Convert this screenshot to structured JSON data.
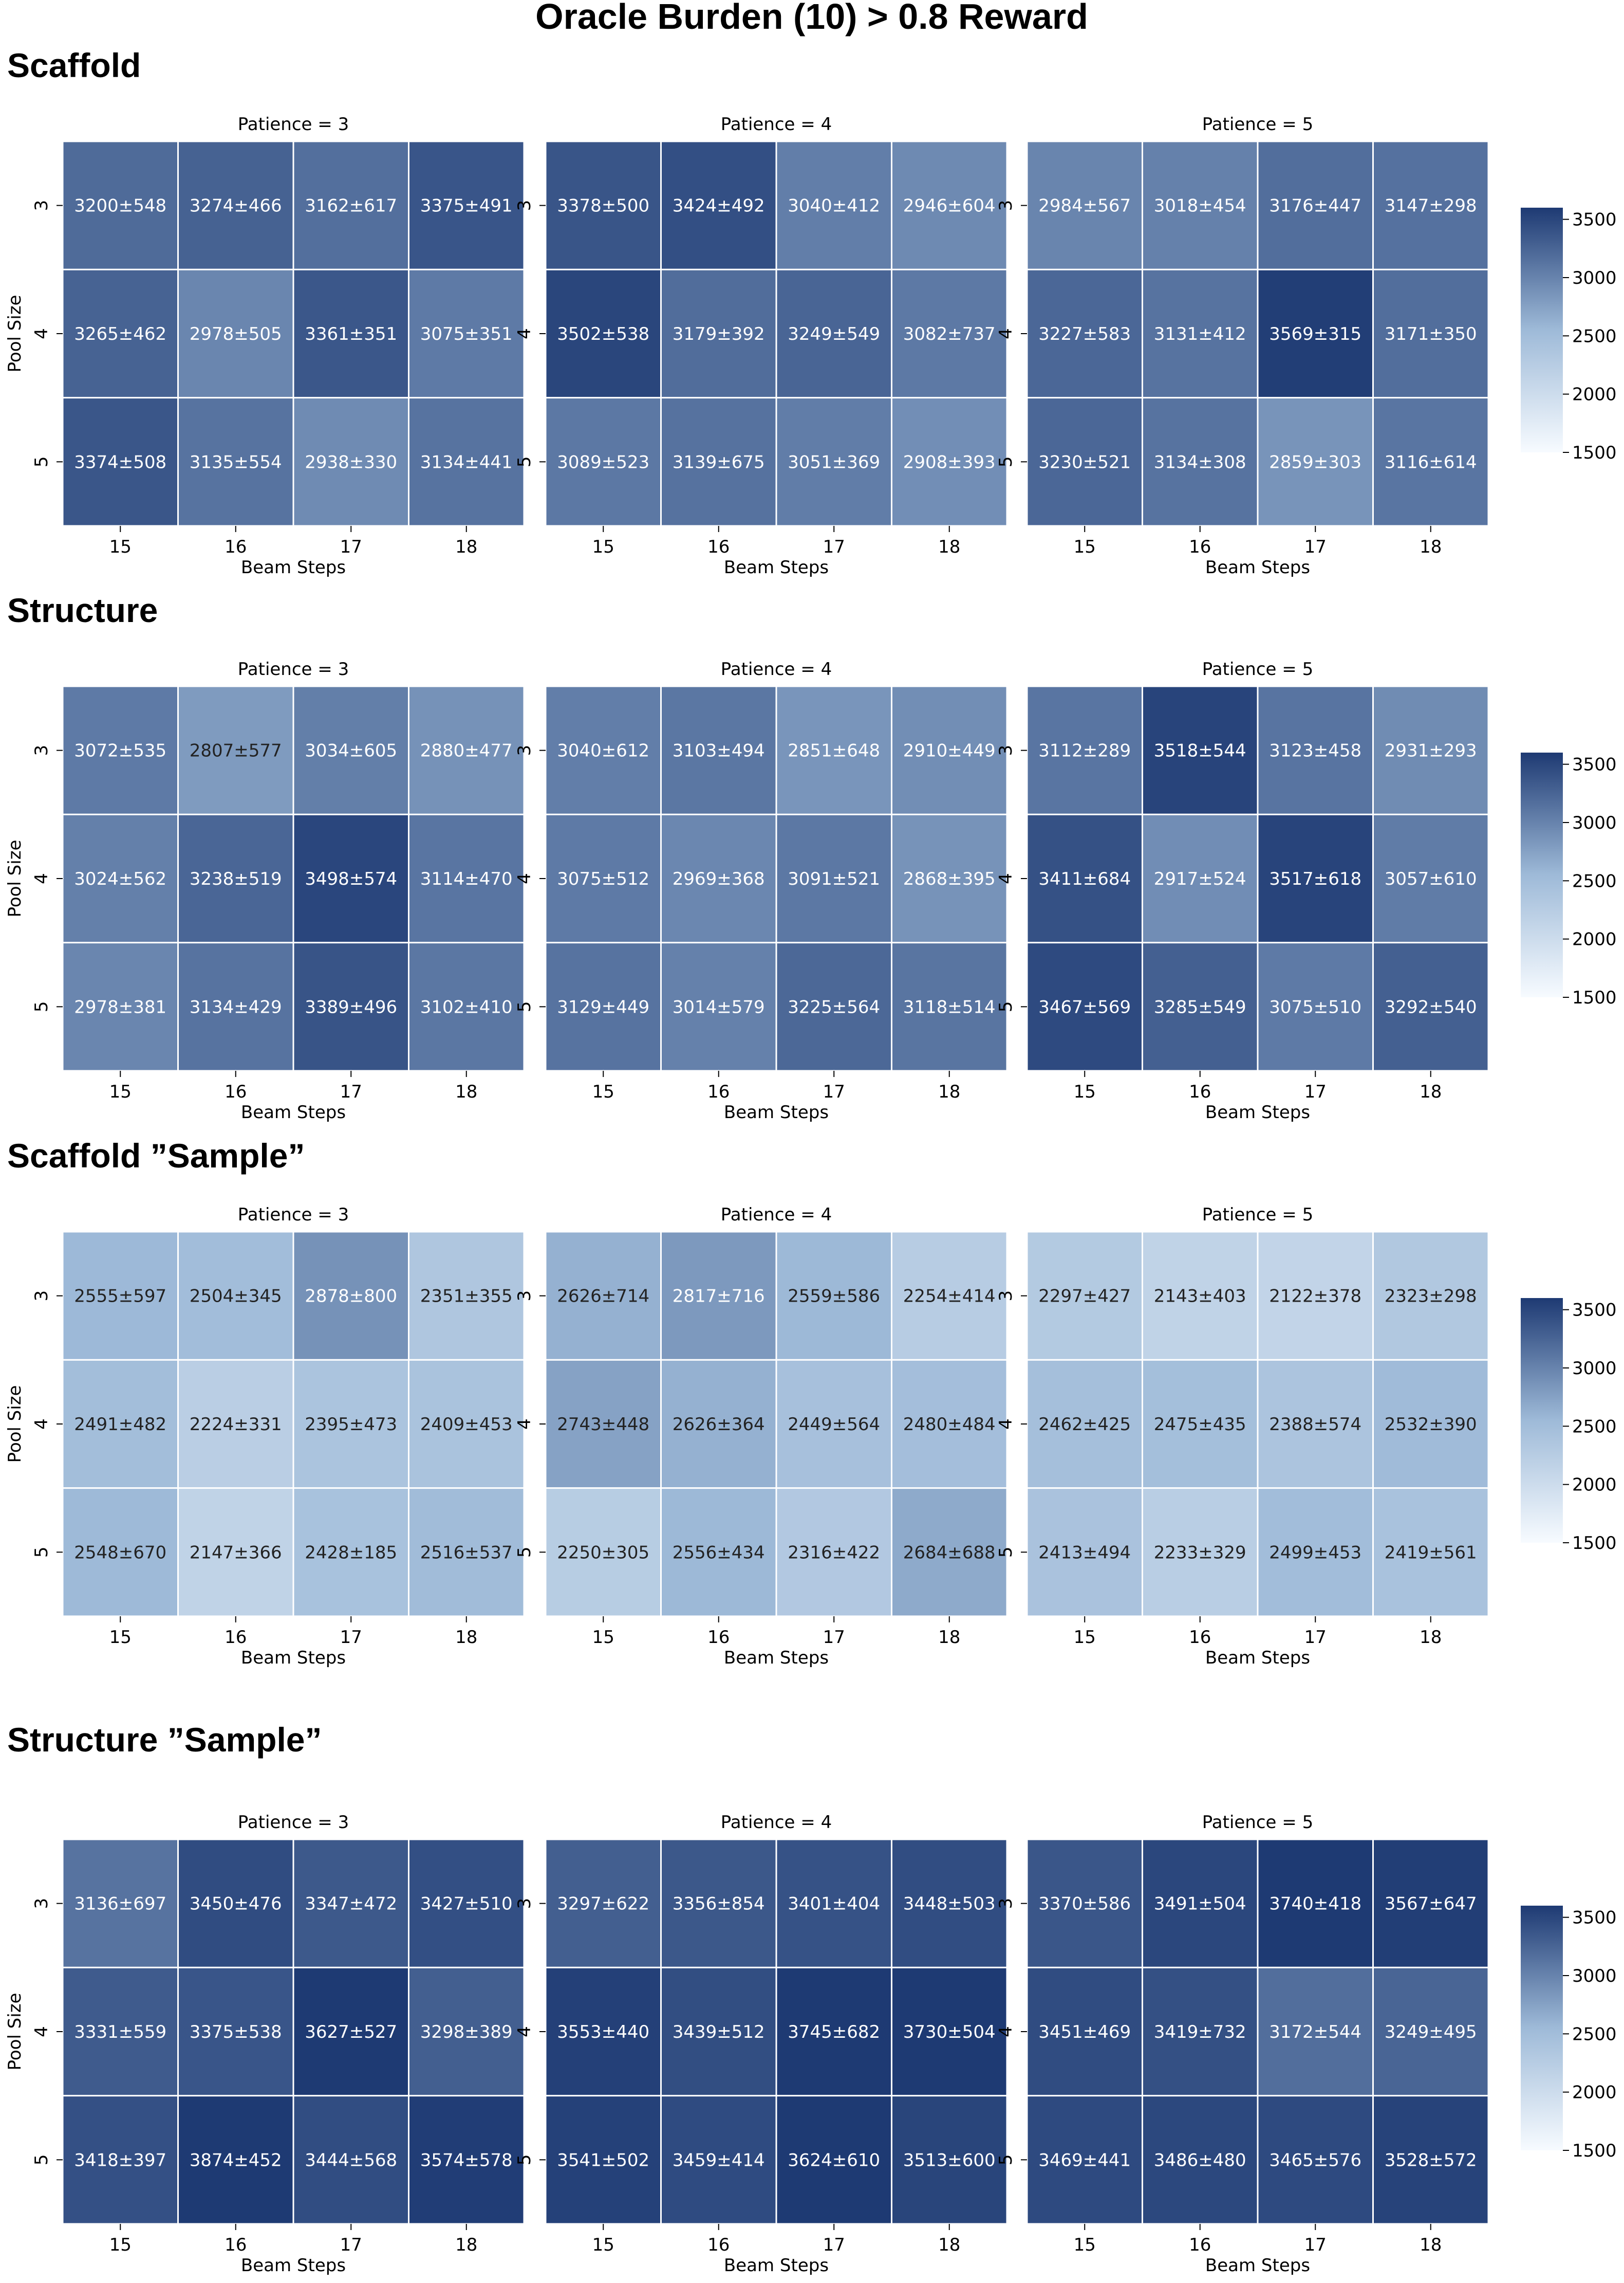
{
  "title": "Oracle Burden (10) > 0.8 Reward",
  "colormap": {
    "low": "#f7fbff",
    "mid": "#9ebad8",
    "high": "#1e3a73"
  },
  "chart_data": [
    {
      "type": "heatmap",
      "section": "Scaffold",
      "xlabel": "Beam Steps",
      "ylabel": "Pool Size",
      "x": [
        "15",
        "16",
        "17",
        "18"
      ],
      "y": [
        "3",
        "4",
        "5"
      ],
      "colorbar": {
        "min": 1500,
        "max": 3600,
        "ticks": [
          "1500",
          "2000",
          "2500",
          "3000",
          "3500"
        ]
      },
      "panels": [
        {
          "title": "Patience = 3",
          "values": [
            [
              3200,
              3274,
              3162,
              3375
            ],
            [
              3265,
              2978,
              3361,
              3075
            ],
            [
              3374,
              3135,
              2938,
              3134
            ]
          ],
          "labels": [
            [
              "3200±548",
              "3274±466",
              "3162±617",
              "3375±491"
            ],
            [
              "3265±462",
              "2978±505",
              "3361±351",
              "3075±351"
            ],
            [
              "3374±508",
              "3135±554",
              "2938±330",
              "3134±441"
            ]
          ]
        },
        {
          "title": "Patience = 4",
          "values": [
            [
              3378,
              3424,
              3040,
              2946
            ],
            [
              3502,
              3179,
              3249,
              3082
            ],
            [
              3089,
              3139,
              3051,
              2908
            ]
          ],
          "labels": [
            [
              "3378±500",
              "3424±492",
              "3040±412",
              "2946±604"
            ],
            [
              "3502±538",
              "3179±392",
              "3249±549",
              "3082±737"
            ],
            [
              "3089±523",
              "3139±675",
              "3051±369",
              "2908±393"
            ]
          ]
        },
        {
          "title": "Patience = 5",
          "values": [
            [
              2984,
              3018,
              3176,
              3147
            ],
            [
              3227,
              3131,
              3569,
              3171
            ],
            [
              3230,
              3134,
              2859,
              3116
            ]
          ],
          "labels": [
            [
              "2984±567",
              "3018±454",
              "3176±447",
              "3147±298"
            ],
            [
              "3227±583",
              "3131±412",
              "3569±315",
              "3171±350"
            ],
            [
              "3230±521",
              "3134±308",
              "2859±303",
              "3116±614"
            ]
          ]
        }
      ]
    },
    {
      "type": "heatmap",
      "section": "Structure",
      "xlabel": "Beam Steps",
      "ylabel": "Pool Size",
      "x": [
        "15",
        "16",
        "17",
        "18"
      ],
      "y": [
        "3",
        "4",
        "5"
      ],
      "colorbar": {
        "min": 1500,
        "max": 3600,
        "ticks": [
          "1500",
          "2000",
          "2500",
          "3000",
          "3500"
        ]
      },
      "panels": [
        {
          "title": "Patience = 3",
          "values": [
            [
              3072,
              2807,
              3034,
              2880
            ],
            [
              3024,
              3238,
              3498,
              3114
            ],
            [
              2978,
              3134,
              3389,
              3102
            ]
          ],
          "labels": [
            [
              "3072±535",
              "2807±577",
              "3034±605",
              "2880±477"
            ],
            [
              "3024±562",
              "3238±519",
              "3498±574",
              "3114±470"
            ],
            [
              "2978±381",
              "3134±429",
              "3389±496",
              "3102±410"
            ]
          ]
        },
        {
          "title": "Patience = 4",
          "values": [
            [
              3040,
              3103,
              2851,
              2910
            ],
            [
              3075,
              2969,
              3091,
              2868
            ],
            [
              3129,
              3014,
              3225,
              3118
            ]
          ],
          "labels": [
            [
              "3040±612",
              "3103±494",
              "2851±648",
              "2910±449"
            ],
            [
              "3075±512",
              "2969±368",
              "3091±521",
              "2868±395"
            ],
            [
              "3129±449",
              "3014±579",
              "3225±564",
              "3118±514"
            ]
          ]
        },
        {
          "title": "Patience = 5",
          "values": [
            [
              3112,
              3518,
              3123,
              2931
            ],
            [
              3411,
              2917,
              3517,
              3057
            ],
            [
              3467,
              3285,
              3075,
              3292
            ]
          ],
          "labels": [
            [
              "3112±289",
              "3518±544",
              "3123±458",
              "2931±293"
            ],
            [
              "3411±684",
              "2917±524",
              "3517±618",
              "3057±610"
            ],
            [
              "3467±569",
              "3285±549",
              "3075±510",
              "3292±540"
            ]
          ]
        }
      ]
    },
    {
      "type": "heatmap",
      "section": "Scaffold ”Sample”",
      "xlabel": "Beam Steps",
      "ylabel": "Pool Size",
      "x": [
        "15",
        "16",
        "17",
        "18"
      ],
      "y": [
        "3",
        "4",
        "5"
      ],
      "colorbar": {
        "min": 1500,
        "max": 3600,
        "ticks": [
          "1500",
          "2000",
          "2500",
          "3000",
          "3500"
        ]
      },
      "panels": [
        {
          "title": "Patience = 3",
          "values": [
            [
              2555,
              2504,
              2878,
              2351
            ],
            [
              2491,
              2224,
              2395,
              2409
            ],
            [
              2548,
              2147,
              2428,
              2516
            ]
          ],
          "labels": [
            [
              "2555±597",
              "2504±345",
              "2878±800",
              "2351±355"
            ],
            [
              "2491±482",
              "2224±331",
              "2395±473",
              "2409±453"
            ],
            [
              "2548±670",
              "2147±366",
              "2428±185",
              "2516±537"
            ]
          ]
        },
        {
          "title": "Patience = 4",
          "values": [
            [
              2626,
              2817,
              2559,
              2254
            ],
            [
              2743,
              2626,
              2449,
              2480
            ],
            [
              2250,
              2556,
              2316,
              2684
            ]
          ],
          "labels": [
            [
              "2626±714",
              "2817±716",
              "2559±586",
              "2254±414"
            ],
            [
              "2743±448",
              "2626±364",
              "2449±564",
              "2480±484"
            ],
            [
              "2250±305",
              "2556±434",
              "2316±422",
              "2684±688"
            ]
          ]
        },
        {
          "title": "Patience = 5",
          "values": [
            [
              2297,
              2143,
              2122,
              2323
            ],
            [
              2462,
              2475,
              2388,
              2532
            ],
            [
              2413,
              2233,
              2499,
              2419
            ]
          ],
          "labels": [
            [
              "2297±427",
              "2143±403",
              "2122±378",
              "2323±298"
            ],
            [
              "2462±425",
              "2475±435",
              "2388±574",
              "2532±390"
            ],
            [
              "2413±494",
              "2233±329",
              "2499±453",
              "2419±561"
            ]
          ]
        }
      ]
    },
    {
      "type": "heatmap",
      "section": "Structure ”Sample”",
      "xlabel": "Beam Steps",
      "ylabel": "Pool Size",
      "x": [
        "15",
        "16",
        "17",
        "18"
      ],
      "y": [
        "3",
        "4",
        "5"
      ],
      "colorbar": {
        "min": 1500,
        "max": 3600,
        "ticks": [
          "1500",
          "2000",
          "2500",
          "3000",
          "3500"
        ]
      },
      "panels": [
        {
          "title": "Patience = 3",
          "values": [
            [
              3136,
              3450,
              3347,
              3427
            ],
            [
              3331,
              3375,
              3627,
              3298
            ],
            [
              3418,
              3874,
              3444,
              3574
            ]
          ],
          "labels": [
            [
              "3136±697",
              "3450±476",
              "3347±472",
              "3427±510"
            ],
            [
              "3331±559",
              "3375±538",
              "3627±527",
              "3298±389"
            ],
            [
              "3418±397",
              "3874±452",
              "3444±568",
              "3574±578"
            ]
          ]
        },
        {
          "title": "Patience = 4",
          "values": [
            [
              3297,
              3356,
              3401,
              3448
            ],
            [
              3553,
              3439,
              3745,
              3730
            ],
            [
              3541,
              3459,
              3624,
              3513
            ]
          ],
          "labels": [
            [
              "3297±622",
              "3356±854",
              "3401±404",
              "3448±503"
            ],
            [
              "3553±440",
              "3439±512",
              "3745±682",
              "3730±504"
            ],
            [
              "3541±502",
              "3459±414",
              "3624±610",
              "3513±600"
            ]
          ]
        },
        {
          "title": "Patience = 5",
          "values": [
            [
              3370,
              3491,
              3740,
              3567
            ],
            [
              3451,
              3419,
              3172,
              3249
            ],
            [
              3469,
              3486,
              3465,
              3528
            ]
          ],
          "labels": [
            [
              "3370±586",
              "3491±504",
              "3740±418",
              "3567±647"
            ],
            [
              "3451±469",
              "3419±732",
              "3172±544",
              "3249±495"
            ],
            [
              "3469±441",
              "3486±480",
              "3465±576",
              "3528±572"
            ]
          ]
        }
      ]
    }
  ]
}
